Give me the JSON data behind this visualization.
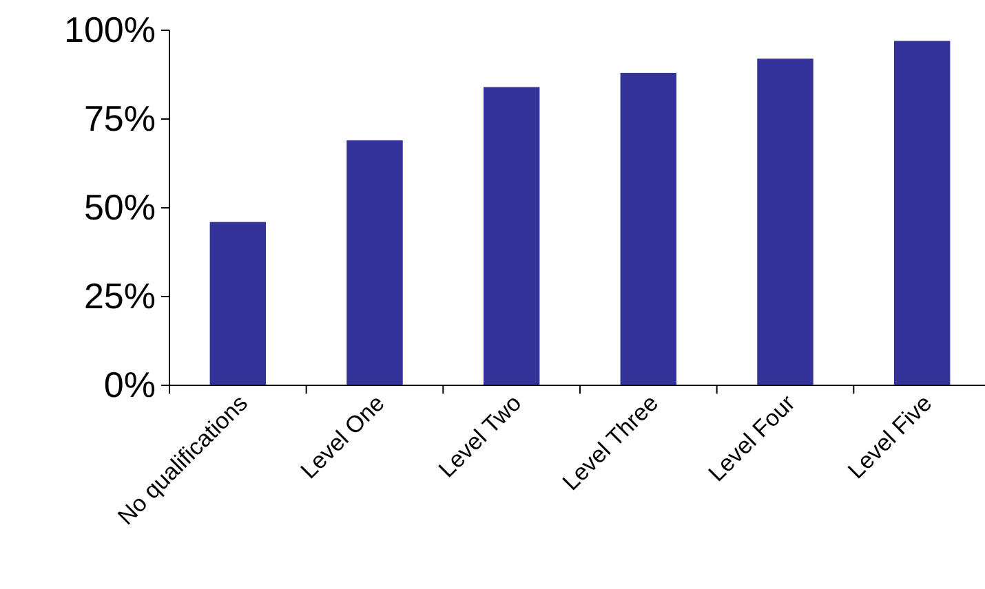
{
  "chart_data": {
    "type": "bar",
    "categories": [
      "No qualifications",
      "Level One",
      "Level Two",
      "Level Three",
      "Level Four",
      "Level Five"
    ],
    "values": [
      46,
      69,
      84,
      88,
      92,
      97
    ],
    "color": "#333399",
    "ylim": [
      0,
      100
    ],
    "yticks": [
      {
        "value": 0,
        "label": "0%"
      },
      {
        "value": 25,
        "label": "25%"
      },
      {
        "value": 50,
        "label": "50%"
      },
      {
        "value": 75,
        "label": "75%"
      },
      {
        "value": 100,
        "label": "100%"
      }
    ],
    "grid": false
  }
}
